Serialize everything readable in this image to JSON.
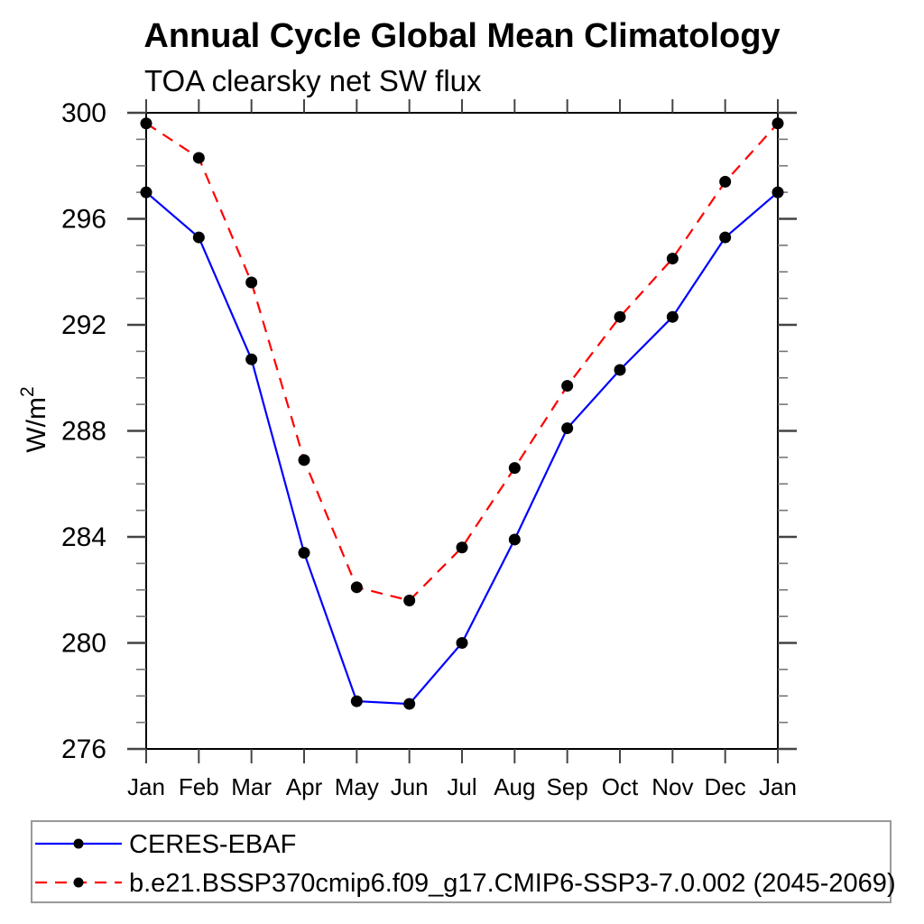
{
  "title": "Annual Cycle Global Mean Climatology",
  "subtitle": "TOA clearsky net SW flux",
  "ylabel": {
    "base": "W/m",
    "sup": "2"
  },
  "colors": {
    "ceres_line": "#0000ff",
    "model_line": "#ff0000",
    "marker": "#000000",
    "axis": "#000000",
    "tick_major": "#444444",
    "tick_minor": "#777777",
    "legend_border": "#999999"
  },
  "chart_data": {
    "type": "line",
    "x_categories": [
      "Jan",
      "Feb",
      "Mar",
      "Apr",
      "May",
      "Jun",
      "Jul",
      "Aug",
      "Sep",
      "Oct",
      "Nov",
      "Dec",
      "Jan"
    ],
    "xlabel": "",
    "ylabel": "W/m2",
    "ylim": [
      276,
      300
    ],
    "ytick_major": [
      276,
      280,
      284,
      288,
      292,
      296,
      300
    ],
    "ytick_minor_step": 1,
    "grid": false,
    "legend_position": "bottom-left-box",
    "series": [
      {
        "name": "CERES-EBAF",
        "color": "#0000ff",
        "style": "solid",
        "marker": "filled-circle",
        "values": [
          297.0,
          295.3,
          290.7,
          283.4,
          277.8,
          277.7,
          280.0,
          283.9,
          288.1,
          290.3,
          292.3,
          295.3,
          297.0
        ]
      },
      {
        "name": "b.e21.BSSP370cmip6.f09_g17.CMIP6-SSP3-7.0.002 (2045-2069)",
        "color": "#ff0000",
        "style": "dashed",
        "marker": "filled-circle",
        "values": [
          299.6,
          298.3,
          293.6,
          286.9,
          282.1,
          281.6,
          283.6,
          286.6,
          289.7,
          292.3,
          294.5,
          297.4,
          299.6
        ]
      }
    ]
  }
}
